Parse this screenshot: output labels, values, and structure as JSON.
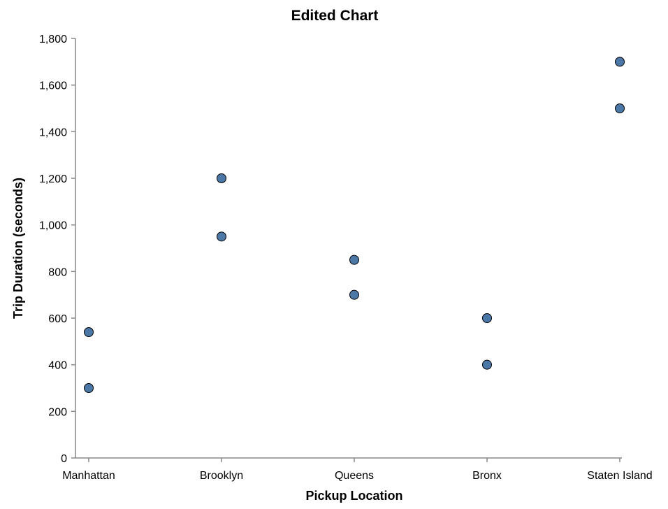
{
  "chart_data": {
    "type": "scatter",
    "title": "Edited Chart",
    "xlabel": "Pickup Location",
    "ylabel": "Trip Duration (seconds)",
    "categories": [
      "Manhattan",
      "Brooklyn",
      "Queens",
      "Bronx",
      "Staten Island"
    ],
    "ylim": [
      0,
      1800
    ],
    "yticks": [
      0,
      200,
      400,
      600,
      800,
      1000,
      1200,
      1400,
      1600,
      1800
    ],
    "ytick_labels": [
      "0",
      "200",
      "400",
      "600",
      "800",
      "1,000",
      "1,200",
      "1,400",
      "1,600",
      "1,800"
    ],
    "grid": false,
    "points": [
      {
        "x": "Manhattan",
        "y": 540
      },
      {
        "x": "Manhattan",
        "y": 300
      },
      {
        "x": "Brooklyn",
        "y": 1200
      },
      {
        "x": "Brooklyn",
        "y": 950
      },
      {
        "x": "Queens",
        "y": 850
      },
      {
        "x": "Queens",
        "y": 700
      },
      {
        "x": "Bronx",
        "y": 600
      },
      {
        "x": "Bronx",
        "y": 400
      },
      {
        "x": "Staten Island",
        "y": 1700
      },
      {
        "x": "Staten Island",
        "y": 1500
      }
    ],
    "point_color": "#4c78a8",
    "point_stroke": "#000000"
  }
}
